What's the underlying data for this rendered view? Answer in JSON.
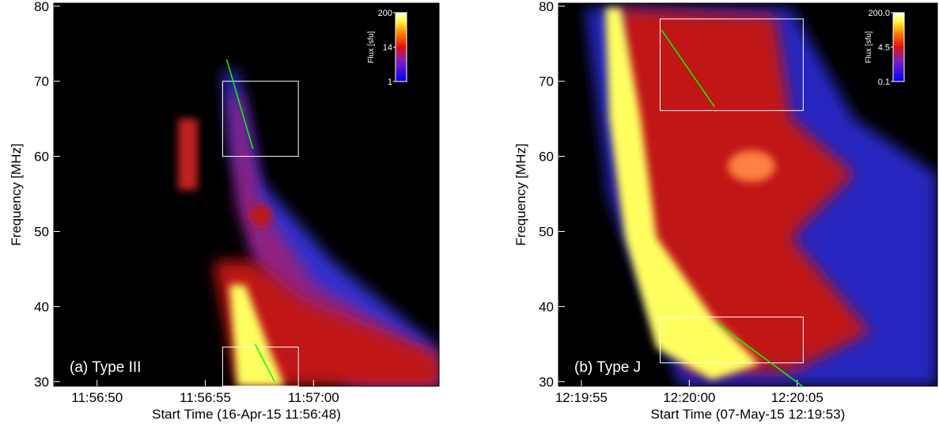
{
  "chart_data": [
    {
      "type": "spectrogram",
      "annotation": "(a) Type III",
      "ylabel": "Frequency [MHz]",
      "xlabel": "Start Time (16-Apr-15 11:56:48)",
      "xlim": [
        0,
        17.8
      ],
      "xticks": [
        {
          "value": 2,
          "label": "11:56:50"
        },
        {
          "value": 7,
          "label": "11:56:55"
        },
        {
          "value": 12,
          "label": "11:57:00"
        }
      ],
      "ylim": [
        29.4,
        80.4
      ],
      "yticks": [
        30,
        40,
        50,
        60,
        70,
        80
      ],
      "colorbar": {
        "label": "Flux [sfu]",
        "log": true,
        "lim": [
          1,
          200
        ],
        "ticks": [
          200,
          14,
          1
        ]
      },
      "box_color": "#ffffff",
      "line_color": "#00ff00",
      "boxes": [
        {
          "x": [
            7.8,
            11.3
          ],
          "y": [
            60,
            70
          ]
        },
        {
          "x": [
            7.8,
            11.3
          ],
          "y": [
            29.4,
            34.6
          ]
        }
      ],
      "lines": [
        {
          "x": [
            7.99,
            9.2
          ],
          "y": [
            72.9,
            61.0
          ]
        },
        {
          "x": [
            9.3,
            10.2
          ],
          "y": [
            35,
            30
          ]
        }
      ]
    },
    {
      "type": "spectrogram",
      "annotation": "(b) Type J",
      "ylabel": "Frequency [MHz]",
      "xlabel": "Start Time (07-May-15 12:19:53)",
      "xlim": [
        0.94,
        18.5
      ],
      "xticks": [
        {
          "value": 2,
          "label": "12:19:55"
        },
        {
          "value": 7,
          "label": "12:20:00"
        },
        {
          "value": 12,
          "label": "12:20:05"
        }
      ],
      "ylim": [
        29.4,
        80.4
      ],
      "yticks": [
        30,
        40,
        50,
        60,
        70,
        80
      ],
      "colorbar": {
        "label": "Flux [sfu]",
        "log": true,
        "lim": [
          0.1,
          200
        ],
        "ticks": [
          {
            "value": 200,
            "label": "200.0"
          },
          4.5,
          0.1
        ]
      },
      "box_color": "#ffffff",
      "line_color": "#00ff00",
      "boxes": [
        {
          "x": [
            5.65,
            12.28
          ],
          "y": [
            66.1,
            78.3
          ]
        },
        {
          "x": [
            5.65,
            12.28
          ],
          "y": [
            32.5,
            38.6
          ]
        }
      ],
      "lines": [
        {
          "x": [
            5.72,
            8.17
          ],
          "y": [
            76.8,
            66.6
          ]
        },
        {
          "x": [
            8.28,
            12.24
          ],
          "y": [
            37.8,
            29.4
          ]
        }
      ]
    }
  ]
}
